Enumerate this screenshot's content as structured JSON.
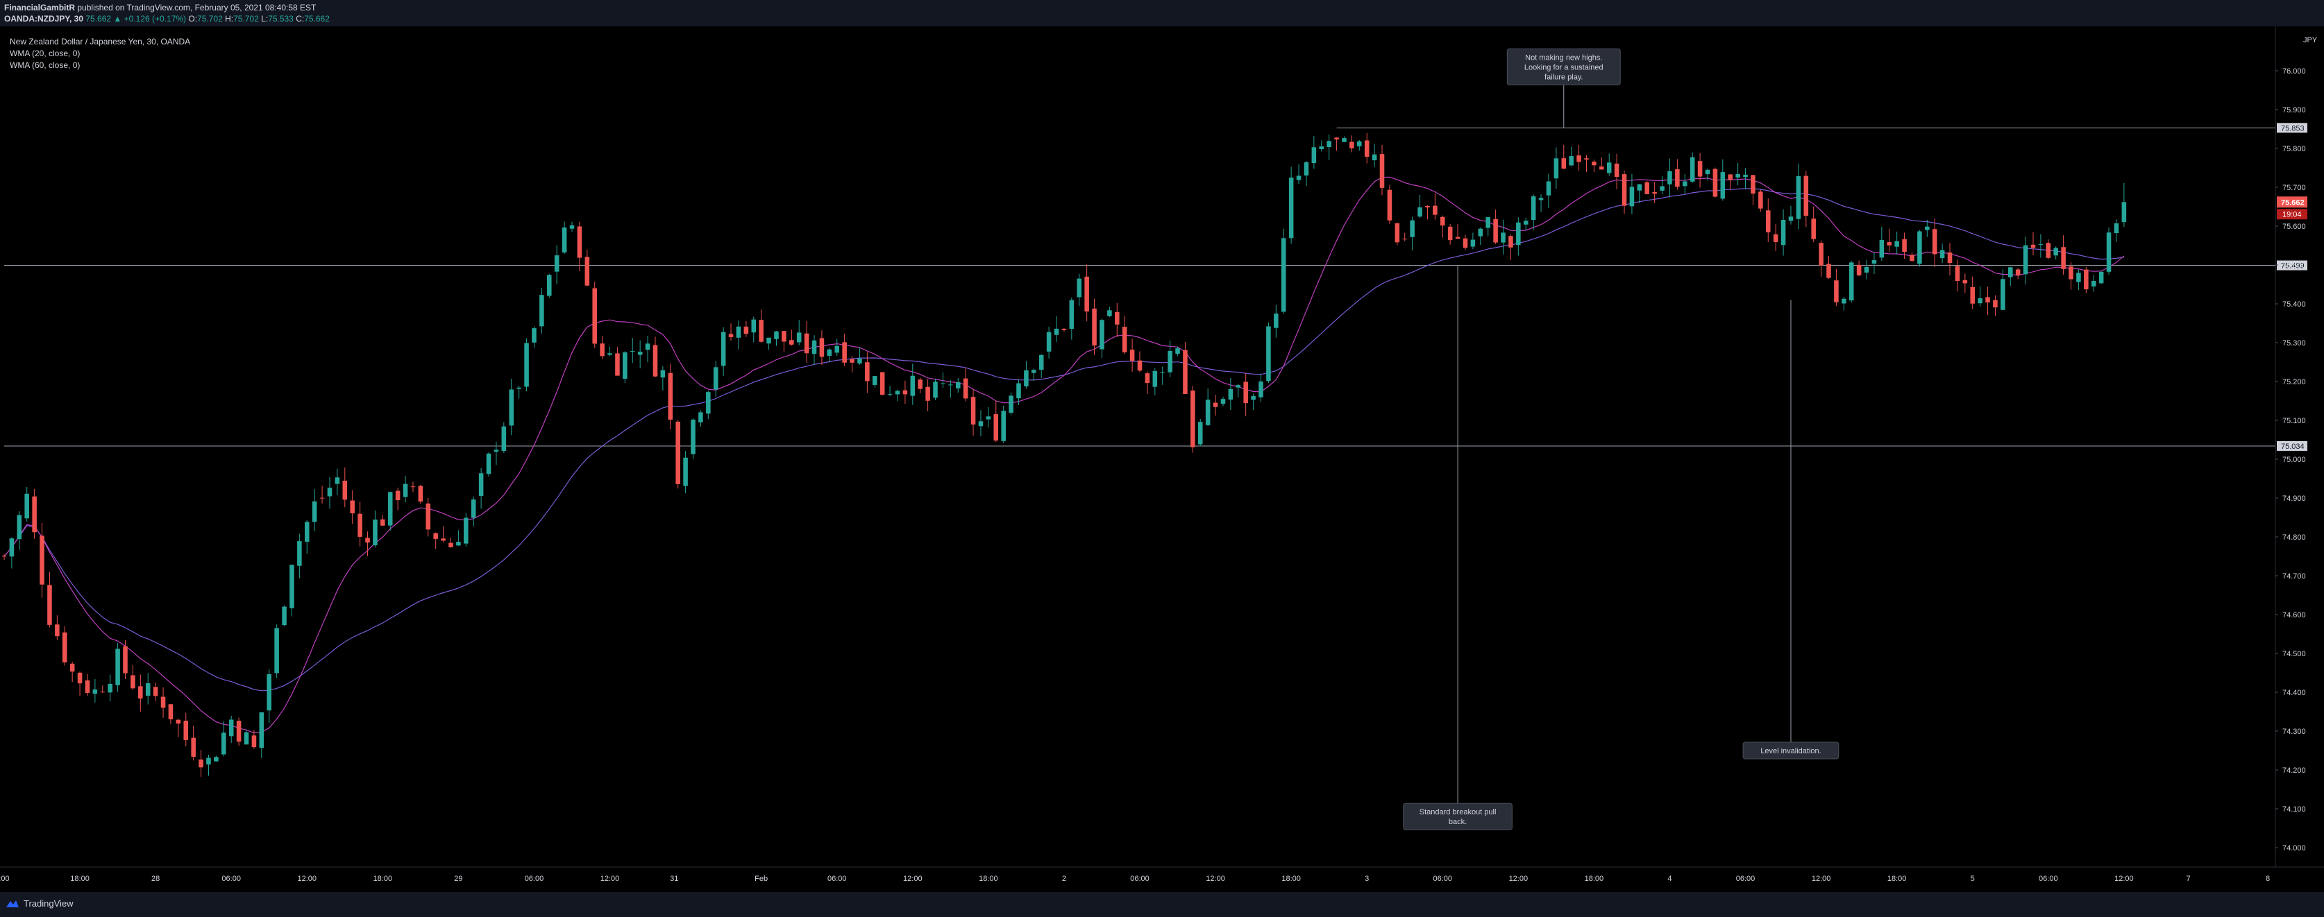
{
  "header": {
    "publisher": "FinancialGambitR",
    "published_text": "published on TradingView.com, February 05, 2021 08:40:58 EST",
    "symbol": "OANDA:NZDJPY, 30",
    "last": "75.662",
    "change": "▲ +0.126 (+0.17%)",
    "o_label": "O:",
    "o_value": "75.702",
    "h_label": "H:",
    "h_value": "75.702",
    "l_label": "L:",
    "l_value": "75.533",
    "c_label": "C:",
    "c_value": "75.662"
  },
  "legend": {
    "title": "New Zealand Dollar / Japanese Yen, 30, OANDA",
    "wma1": "WMA (20, close, 0)",
    "wma2": "WMA (60, close, 0)"
  },
  "currency_label": "JPY",
  "colors": {
    "background": "#000000",
    "up": "#26a69a",
    "down": "#ef5350",
    "wma20": "#c040c0",
    "wma60": "#7c5cd6",
    "hline": "#9aa0aa",
    "axis_text": "#d1d4dc"
  },
  "footer": {
    "brand": "TradingView"
  },
  "chart_data": {
    "type": "candlestick",
    "ylim": [
      73.95,
      76.1
    ],
    "xlim": [
      0,
      300
    ],
    "y_ticks": [
      "76.000",
      "75.900",
      "75.800",
      "75.700",
      "75.600",
      "75.500",
      "75.400",
      "75.300",
      "75.200",
      "75.100",
      "75.000",
      "74.900",
      "74.800",
      "74.700",
      "74.600",
      "74.500",
      "74.400",
      "74.300",
      "74.200",
      "74.100",
      "74.000"
    ],
    "x_ticks": [
      {
        "x": 0,
        "label": ":00"
      },
      {
        "x": 10,
        "label": "18:00"
      },
      {
        "x": 20,
        "label": "28"
      },
      {
        "x": 30,
        "label": "06:00"
      },
      {
        "x": 40,
        "label": "12:00"
      },
      {
        "x": 50,
        "label": "18:00"
      },
      {
        "x": 60,
        "label": "29"
      },
      {
        "x": 70,
        "label": "06:00"
      },
      {
        "x": 80,
        "label": "12:00"
      },
      {
        "x": 88.5,
        "label": "31"
      },
      {
        "x": 100,
        "label": "Feb"
      },
      {
        "x": 110,
        "label": "06:00"
      },
      {
        "x": 120,
        "label": "12:00"
      },
      {
        "x": 130,
        "label": "18:00"
      },
      {
        "x": 140,
        "label": "2"
      },
      {
        "x": 150,
        "label": "06:00"
      },
      {
        "x": 160,
        "label": "12:00"
      },
      {
        "x": 170,
        "label": "18:00"
      },
      {
        "x": 180,
        "label": "3"
      },
      {
        "x": 190,
        "label": "06:00"
      },
      {
        "x": 200,
        "label": "12:00"
      },
      {
        "x": 210,
        "label": "18:00"
      },
      {
        "x": 220,
        "label": "4"
      },
      {
        "x": 230,
        "label": "06:00"
      },
      {
        "x": 240,
        "label": "12:00"
      },
      {
        "x": 250,
        "label": "18:00"
      },
      {
        "x": 260,
        "label": "5"
      },
      {
        "x": 270,
        "label": "06:00"
      },
      {
        "x": 280,
        "label": "12:00"
      },
      {
        "x": 288.5,
        "label": "7"
      },
      {
        "x": 299,
        "label": "8"
      }
    ],
    "price_path": [
      [
        0,
        74.75
      ],
      [
        3,
        74.9
      ],
      [
        6,
        74.6
      ],
      [
        9,
        74.45
      ],
      [
        12,
        74.4
      ],
      [
        15,
        74.48
      ],
      [
        18,
        74.4
      ],
      [
        21,
        74.38
      ],
      [
        24,
        74.28
      ],
      [
        27,
        74.22
      ],
      [
        30,
        74.33
      ],
      [
        33,
        74.25
      ],
      [
        35,
        74.45
      ],
      [
        38,
        74.75
      ],
      [
        41,
        74.88
      ],
      [
        44,
        74.95
      ],
      [
        47,
        74.8
      ],
      [
        50,
        74.85
      ],
      [
        53,
        74.95
      ],
      [
        56,
        74.82
      ],
      [
        59,
        74.78
      ],
      [
        62,
        74.88
      ],
      [
        65,
        75.05
      ],
      [
        68,
        75.2
      ],
      [
        71,
        75.4
      ],
      [
        74,
        75.6
      ],
      [
        76,
        75.55
      ],
      [
        78,
        75.3
      ],
      [
        81,
        75.25
      ],
      [
        84,
        75.3
      ],
      [
        87,
        75.22
      ],
      [
        89,
        74.97
      ],
      [
        91,
        75.1
      ],
      [
        93,
        75.2
      ],
      [
        95,
        75.3
      ],
      [
        98,
        75.35
      ],
      [
        101,
        75.32
      ],
      [
        104,
        75.3
      ],
      [
        107,
        75.28
      ],
      [
        110,
        75.3
      ],
      [
        113,
        75.25
      ],
      [
        116,
        75.18
      ],
      [
        119,
        75.2
      ],
      [
        122,
        75.15
      ],
      [
        125,
        75.2
      ],
      [
        128,
        75.1
      ],
      [
        131,
        75.08
      ],
      [
        134,
        75.22
      ],
      [
        137,
        75.28
      ],
      [
        140,
        75.35
      ],
      [
        142,
        75.45
      ],
      [
        144,
        75.3
      ],
      [
        146,
        75.35
      ],
      [
        149,
        75.28
      ],
      [
        151,
        75.18
      ],
      [
        153,
        75.25
      ],
      [
        155,
        75.3
      ],
      [
        157,
        75.05
      ],
      [
        159,
        75.12
      ],
      [
        162,
        75.18
      ],
      [
        165,
        75.15
      ],
      [
        168,
        75.4
      ],
      [
        170,
        75.7
      ],
      [
        172,
        75.75
      ],
      [
        175,
        75.82
      ],
      [
        178,
        75.78
      ],
      [
        181,
        75.8
      ],
      [
        184,
        75.55
      ],
      [
        187,
        75.65
      ],
      [
        190,
        75.6
      ],
      [
        193,
        75.55
      ],
      [
        196,
        75.6
      ],
      [
        199,
        75.55
      ],
      [
        202,
        75.65
      ],
      [
        205,
        75.75
      ],
      [
        208,
        75.8
      ],
      [
        211,
        75.78
      ],
      [
        214,
        75.65
      ],
      [
        217,
        75.7
      ],
      [
        220,
        75.72
      ],
      [
        223,
        75.75
      ],
      [
        226,
        75.7
      ],
      [
        229,
        75.75
      ],
      [
        231,
        75.65
      ],
      [
        234,
        75.55
      ],
      [
        237,
        75.7
      ],
      [
        240,
        75.5
      ],
      [
        242,
        75.42
      ],
      [
        245,
        75.5
      ],
      [
        248,
        75.55
      ],
      [
        251,
        75.52
      ],
      [
        254,
        75.58
      ],
      [
        257,
        75.5
      ],
      [
        260,
        75.38
      ],
      [
        263,
        75.42
      ],
      [
        266,
        75.5
      ],
      [
        269,
        75.55
      ],
      [
        272,
        75.52
      ],
      [
        275,
        75.45
      ],
      [
        278,
        75.55
      ],
      [
        280,
        75.7
      ]
    ],
    "h_levels": [
      {
        "value": 75.853,
        "label": "75.853",
        "from_x": 176
      },
      {
        "value": 75.499,
        "label": "75.499",
        "from_x": 0
      },
      {
        "value": 75.034,
        "label": "75.034",
        "from_x": 0
      }
    ],
    "current_price": {
      "value": 75.662,
      "label": "75.662",
      "countdown": "19:04"
    },
    "annotations": [
      {
        "text_lines": [
          "Not making new highs.",
          "Looking for a sustained",
          "failure play."
        ],
        "anchor_x": 206,
        "anchor_y": 75.853,
        "box_x": 206,
        "box_y": 76.01
      },
      {
        "text_lines": [
          "Standard breakout pull",
          "back."
        ],
        "anchor_x": 192,
        "anchor_y": 75.499,
        "box_x": 192,
        "box_y": 74.08
      },
      {
        "text_lines": [
          "Level invalidation."
        ],
        "anchor_x": 236,
        "anchor_y": 75.41,
        "box_x": 236,
        "box_y": 74.25
      }
    ]
  }
}
